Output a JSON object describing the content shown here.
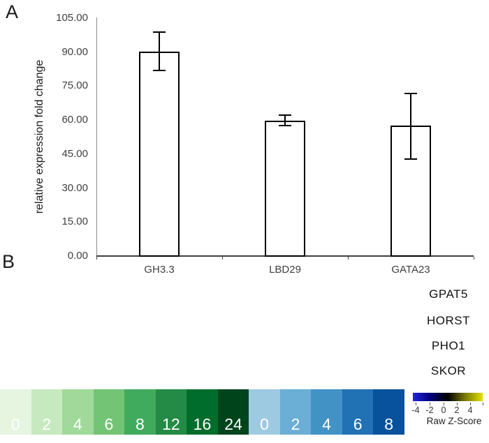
{
  "panels": {
    "a": "A",
    "b": "B"
  },
  "chart_data": [
    {
      "type": "bar",
      "title": "",
      "xlabel": "",
      "ylabel": "relative expression fold change",
      "categories": [
        "GH3.3",
        "LBD29",
        "GATA23"
      ],
      "values": [
        90,
        59.5,
        57.2
      ],
      "errors_up": [
        8.5,
        2.3,
        14.3
      ],
      "errors_down": [
        8.3,
        2.3,
        14.8
      ],
      "ylim": [
        0,
        105
      ],
      "ytick_step": 15,
      "ytick_labels": [
        "0.00",
        "15.00",
        "30.00",
        "45.00",
        "60.00",
        "75.00",
        "90.00",
        "105.00"
      ],
      "bar_fill": "#ffffff",
      "bar_border": "#000000",
      "grid": false,
      "legend": false
    },
    {
      "type": "heatmap",
      "row_labels": [
        "GPAT5",
        "HORST",
        "PHO1",
        "SKOR"
      ],
      "column_scales": [
        {
          "name": "green",
          "labels": [
            "0",
            "2",
            "4",
            "6",
            "8",
            "12",
            "16",
            "24"
          ],
          "colors": [
            "#e5f5e0",
            "#c7e9c0",
            "#a1d99b",
            "#74c476",
            "#41ab5d",
            "#238b45",
            "#006d2c",
            "#00441b"
          ]
        },
        {
          "name": "blue",
          "labels": [
            "0",
            "2",
            "4",
            "6",
            "8"
          ],
          "colors": [
            "#9ecae1",
            "#6baed6",
            "#4292c6",
            "#2171b5",
            "#08519c"
          ]
        }
      ],
      "legend": {
        "title": "Raw Z-Score",
        "tick_labels": [
          "-4",
          "-2",
          "0",
          "2",
          "4"
        ],
        "gradient": [
          "#2323e0",
          "#00007a",
          "#000000",
          "#7a7a00",
          "#e0e000"
        ]
      }
    }
  ]
}
